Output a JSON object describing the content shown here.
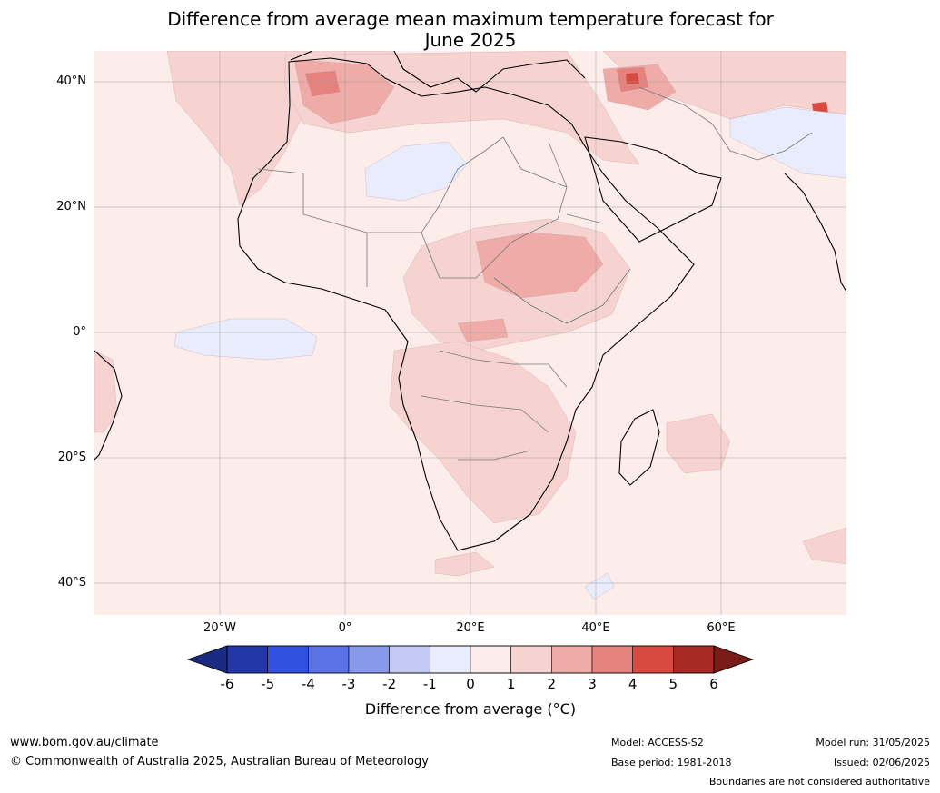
{
  "title_line1": "Difference from average mean maximum temperature forecast for",
  "title_line2": "June 2025",
  "lat_labels": [
    "40°N",
    "20°N",
    "0°",
    "20°S",
    "40°S"
  ],
  "lon_labels": [
    "20°W",
    "0°",
    "20°E",
    "40°E",
    "60°E"
  ],
  "colorbar": {
    "ticks": [
      "-6",
      "-5",
      "-4",
      "-3",
      "-2",
      "-1",
      "0",
      "1",
      "2",
      "3",
      "4",
      "5",
      "6"
    ],
    "colors": [
      "#2437a8",
      "#3150e0",
      "#5a72e4",
      "#8898ea",
      "#c2c9f4",
      "#e8ecfc",
      "#fcecea",
      "#f6d3d0",
      "#eeaba8",
      "#e6827e",
      "#d84a40",
      "#a82a22"
    ],
    "under_color": "#1a2a80",
    "over_color": "#7a1c18",
    "label": "Difference from average (°C)"
  },
  "map_colors": {
    "background": "#fcecea",
    "cool": "#e8ecfc",
    "warm1": "#f6d3d0",
    "warm2": "#eeaba8",
    "warm3": "#e6827e",
    "warm4": "#d84a40"
  },
  "footer": {
    "website": "www.bom.gov.au/climate",
    "copyright": "© Commonwealth of Australia 2025, Australian Bureau of Meteorology",
    "model": "Model: ACCESS-S2",
    "base_period": "Base period: 1981-2018",
    "model_run": "Model run: 31/05/2025",
    "issued": "Issued: 02/06/2025",
    "disclaimer": "Boundaries are not considered authoritative"
  }
}
